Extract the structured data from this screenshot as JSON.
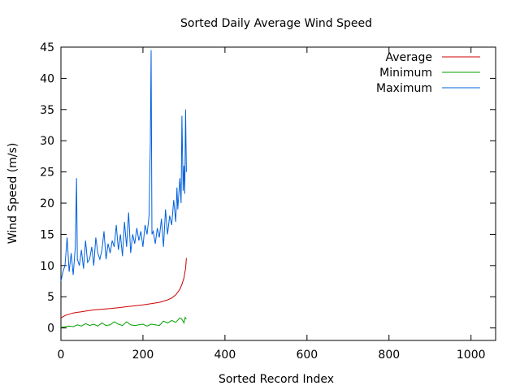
{
  "chart_data": {
    "type": "line",
    "title": "Sorted Daily Average Wind Speed",
    "xlabel": "Sorted Record Index",
    "ylabel": "Wind Speed (m/s)",
    "xlim": [
      0,
      1060
    ],
    "ylim": [
      -2,
      45
    ],
    "xticks": [
      0,
      200,
      400,
      600,
      800,
      1000
    ],
    "yticks": [
      0,
      5,
      10,
      15,
      20,
      25,
      30,
      35,
      40,
      45
    ],
    "grid": false,
    "legend_position": "top-right",
    "series": [
      {
        "name": "Average",
        "color": "#cc0000",
        "x": [
          0,
          5,
          10,
          20,
          30,
          40,
          50,
          60,
          80,
          100,
          120,
          140,
          160,
          180,
          200,
          220,
          240,
          250,
          260,
          270,
          280,
          290,
          295,
          300,
          302,
          304,
          306
        ],
        "y": [
          1.6,
          1.8,
          2.0,
          2.2,
          2.4,
          2.5,
          2.6,
          2.7,
          2.9,
          3.0,
          3.1,
          3.25,
          3.4,
          3.55,
          3.7,
          3.9,
          4.1,
          4.3,
          4.5,
          4.8,
          5.3,
          6.2,
          7.0,
          8.0,
          8.8,
          9.5,
          11.2
        ]
      },
      {
        "name": "Minimum",
        "color": "#00a000",
        "x": [
          0,
          10,
          20,
          30,
          40,
          50,
          60,
          70,
          80,
          90,
          100,
          110,
          120,
          130,
          140,
          150,
          160,
          170,
          180,
          190,
          200,
          210,
          220,
          230,
          240,
          250,
          260,
          270,
          280,
          290,
          295,
          300,
          303,
          306
        ],
        "y": [
          0.1,
          0.2,
          0.3,
          0.2,
          0.5,
          0.3,
          0.7,
          0.4,
          0.6,
          0.3,
          0.8,
          0.4,
          0.5,
          1.0,
          0.6,
          0.4,
          1.0,
          0.5,
          0.4,
          0.5,
          0.6,
          0.3,
          0.6,
          0.5,
          0.4,
          1.1,
          0.8,
          1.2,
          0.9,
          1.6,
          1.4,
          0.8,
          1.7,
          1.4
        ]
      },
      {
        "name": "Maximum",
        "color": "#0060dd",
        "x": [
          0,
          5,
          10,
          15,
          20,
          25,
          30,
          35,
          38,
          40,
          45,
          50,
          55,
          60,
          65,
          70,
          75,
          80,
          85,
          90,
          95,
          100,
          105,
          110,
          115,
          120,
          125,
          130,
          135,
          140,
          145,
          150,
          155,
          160,
          165,
          170,
          175,
          180,
          185,
          190,
          195,
          200,
          205,
          210,
          215,
          218,
          220,
          222,
          225,
          230,
          235,
          240,
          245,
          250,
          255,
          260,
          265,
          270,
          275,
          280,
          283,
          285,
          290,
          293,
          295,
          298,
          300,
          302,
          304,
          306
        ],
        "y": [
          7.5,
          9.0,
          10.0,
          14.5,
          9.0,
          12.0,
          8.5,
          13.0,
          24.0,
          11.0,
          10.0,
          12.5,
          9.5,
          14.0,
          10.5,
          11.0,
          13.0,
          10.0,
          14.5,
          12.0,
          11.0,
          12.5,
          15.5,
          11.0,
          13.5,
          12.0,
          14.0,
          13.0,
          16.5,
          12.5,
          15.0,
          11.5,
          17.0,
          13.0,
          18.5,
          12.0,
          15.0,
          13.5,
          16.0,
          14.0,
          15.5,
          13.0,
          16.5,
          15.0,
          18.0,
          29.5,
          44.5,
          15.0,
          15.5,
          13.5,
          16.0,
          14.5,
          17.5,
          13.0,
          19.0,
          15.0,
          18.0,
          16.5,
          20.5,
          17.0,
          22.5,
          19.0,
          24.0,
          20.0,
          34.0,
          22.0,
          26.0,
          21.5,
          35.0,
          25.0
        ]
      }
    ]
  }
}
